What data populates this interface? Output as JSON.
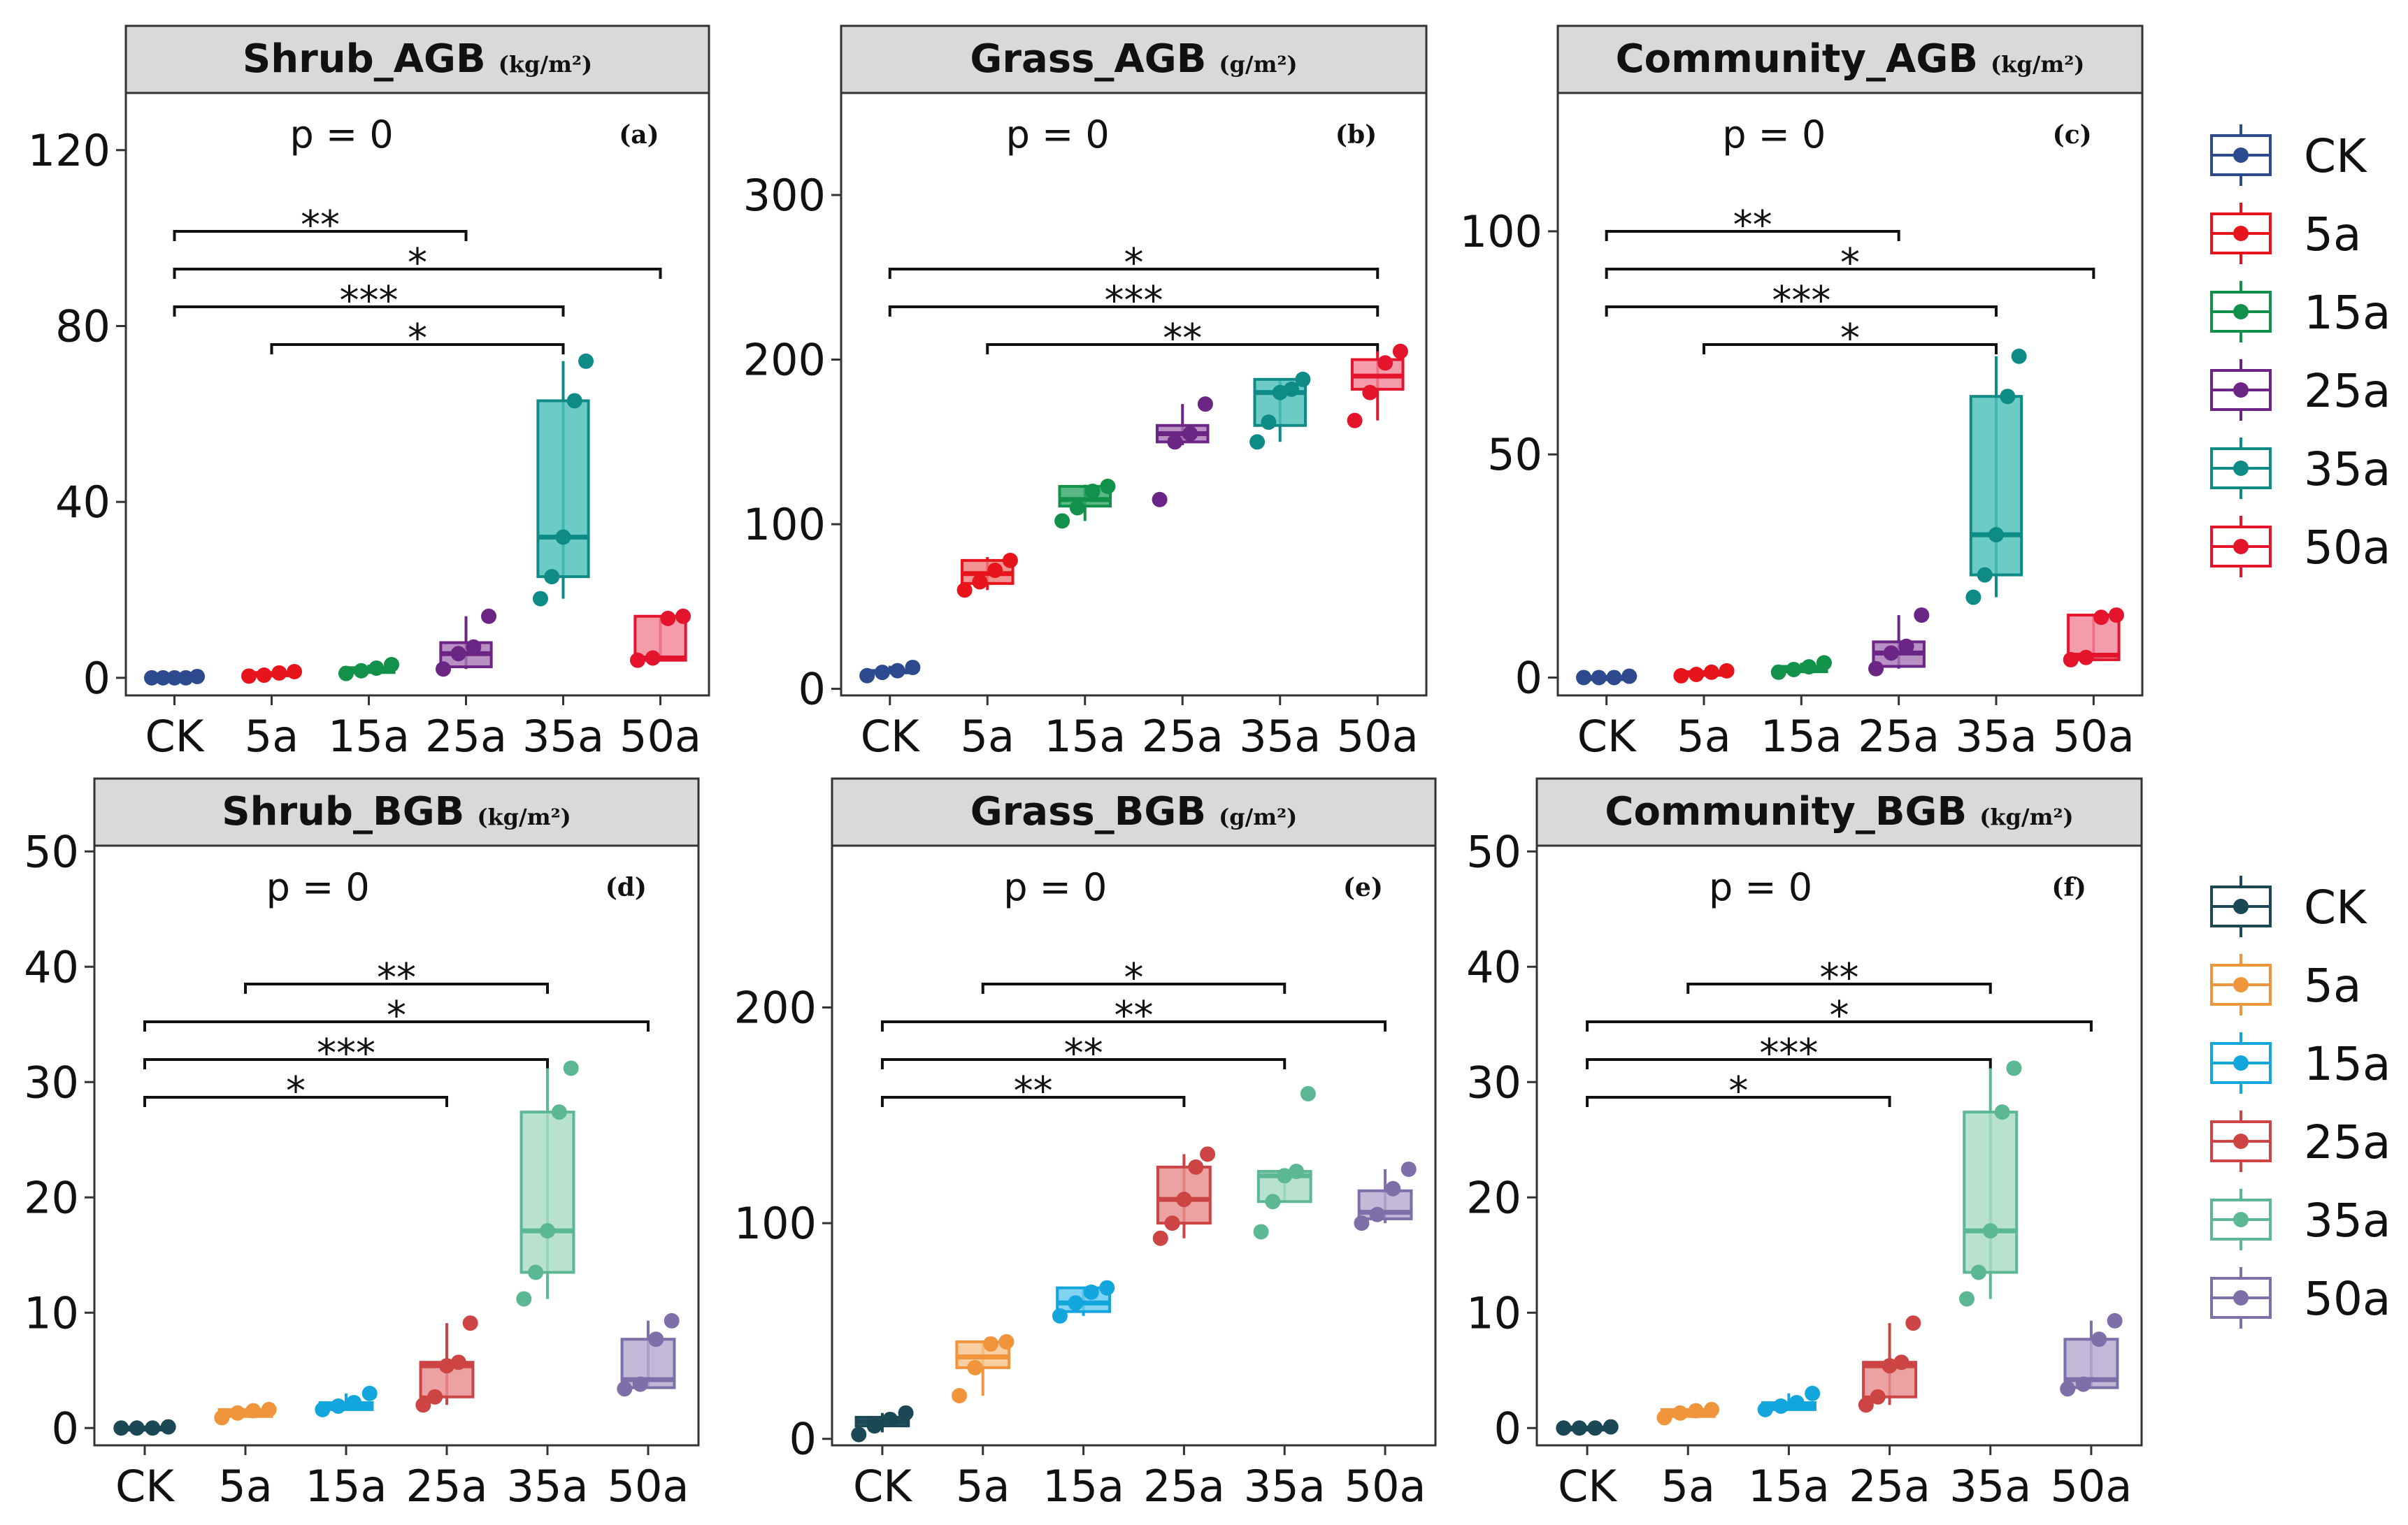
{
  "categories": [
    "CK",
    "5a",
    "15a",
    "25a",
    "35a",
    "50a"
  ],
  "legend_top": {
    "items": [
      "CK",
      "5a",
      "15a",
      "25a",
      "35a",
      "50a"
    ],
    "colors": [
      "#2e4a8e",
      "#e8141c",
      "#12914a",
      "#6a2585",
      "#0e8a87",
      "#e3142c"
    ],
    "fills": [
      "#2e4a8e",
      "#f07c7c",
      "#35a86a",
      "#a978b6",
      "#4dbfba",
      "#f3869a"
    ]
  },
  "legend_bottom": {
    "items": [
      "CK",
      "5a",
      "15a",
      "25a",
      "35a",
      "50a"
    ],
    "colors": [
      "#1c4754",
      "#f0953c",
      "#12a6dc",
      "#cc4444",
      "#5cb894",
      "#7e6fa8"
    ],
    "fills": [
      "#1c4754",
      "#f8c48e",
      "#67c9ef",
      "#e88e8e",
      "#a8dcc4",
      "#b4aad0"
    ]
  },
  "chart_data": [
    {
      "id": "a",
      "type": "box",
      "title": "Shrub_AGB",
      "unit": "(kg/m²)",
      "letter": "(a)",
      "p_text": "p = 0",
      "legend": "top",
      "ylim": [
        -4,
        133
      ],
      "yticks": [
        0,
        40,
        80,
        120
      ],
      "boxes": [
        {
          "q1": 0,
          "med": 0,
          "q3": 0,
          "lo": 0,
          "hi": 0,
          "pts": [
            0,
            0,
            0,
            0,
            0.3
          ]
        },
        {
          "q1": 0.5,
          "med": 0.7,
          "q3": 1.2,
          "lo": 0.4,
          "hi": 1.5,
          "pts": [
            0.4,
            0.6,
            1.1,
            1.4
          ]
        },
        {
          "q1": 1.2,
          "med": 1.8,
          "q3": 2.3,
          "lo": 1.0,
          "hi": 3.0,
          "pts": [
            1.0,
            1.6,
            2.2,
            3.0
          ]
        },
        {
          "q1": 2.5,
          "med": 5.5,
          "q3": 8.0,
          "lo": 2.0,
          "hi": 14.0,
          "pts": [
            2.0,
            5.5,
            7.0,
            14.0
          ]
        },
        {
          "q1": 23,
          "med": 32,
          "q3": 63,
          "lo": 18,
          "hi": 72,
          "pts": [
            18,
            23,
            32,
            63,
            72
          ]
        },
        {
          "q1": 4,
          "med": 4.5,
          "q3": 14,
          "lo": 4,
          "hi": 14,
          "pts": [
            4.0,
            4.5,
            13.5,
            14.0
          ]
        }
      ],
      "brackets": [
        {
          "from": 1,
          "to": 4,
          "level": 0,
          "label": "*"
        },
        {
          "from": 0,
          "to": 4,
          "level": 1,
          "label": "***"
        },
        {
          "from": 0,
          "to": 5,
          "level": 2,
          "label": "*"
        },
        {
          "from": 0,
          "to": 3,
          "level": 3,
          "label": "**"
        }
      ]
    },
    {
      "id": "b",
      "type": "box",
      "title": "Grass_AGB",
      "unit": "(g/m²)",
      "letter": "(b)",
      "p_text": "p = 0",
      "legend": "top",
      "ylim": [
        -4,
        362
      ],
      "yticks": [
        0,
        100,
        200,
        300
      ],
      "boxes": [
        {
          "q1": 10,
          "med": 10.5,
          "q3": 11,
          "lo": 9,
          "hi": 14,
          "pts": [
            8,
            10,
            11,
            13
          ]
        },
        {
          "q1": 64,
          "med": 70,
          "q3": 78,
          "lo": 60,
          "hi": 80,
          "pts": [
            60,
            65,
            72,
            78
          ]
        },
        {
          "q1": 111,
          "med": 115,
          "q3": 123,
          "lo": 102,
          "hi": 124,
          "pts": [
            102,
            110,
            120,
            123
          ]
        },
        {
          "q1": 150,
          "med": 155,
          "q3": 160,
          "lo": 148,
          "hi": 173,
          "pts": [
            115,
            150,
            155,
            173
          ]
        },
        {
          "q1": 160,
          "med": 180,
          "q3": 188,
          "lo": 150,
          "hi": 188,
          "pts": [
            150,
            162,
            180,
            182,
            188
          ]
        },
        {
          "q1": 182,
          "med": 190,
          "q3": 200,
          "lo": 163,
          "hi": 205,
          "pts": [
            163,
            180,
            198,
            205
          ]
        }
      ],
      "brackets": [
        {
          "from": 1,
          "to": 5,
          "level": 0,
          "label": "**"
        },
        {
          "from": 0,
          "to": 5,
          "level": 1,
          "label": "***"
        },
        {
          "from": 0,
          "to": 5,
          "level": 2,
          "label": "*"
        }
      ]
    },
    {
      "id": "c",
      "type": "box",
      "title": "Community_AGB",
      "unit": "(kg/m²)",
      "letter": "(c)",
      "p_text": "p = 0",
      "legend": "top",
      "ylim": [
        -4,
        131
      ],
      "yticks": [
        0,
        50,
        100
      ],
      "boxes": [
        {
          "q1": 0,
          "med": 0,
          "q3": 0,
          "lo": 0,
          "hi": 0,
          "pts": [
            0,
            0,
            0,
            0.3
          ]
        },
        {
          "q1": 0.5,
          "med": 0.8,
          "q3": 1.3,
          "lo": 0.4,
          "hi": 1.6,
          "pts": [
            0.4,
            0.7,
            1.2,
            1.5
          ]
        },
        {
          "q1": 1.3,
          "med": 2.0,
          "q3": 2.5,
          "lo": 1.2,
          "hi": 3.3,
          "pts": [
            1.2,
            1.8,
            2.4,
            3.3
          ]
        },
        {
          "q1": 2.5,
          "med": 5.5,
          "q3": 8.0,
          "lo": 2.0,
          "hi": 14.0,
          "pts": [
            2.0,
            5.5,
            7.0,
            14.0
          ]
        },
        {
          "q1": 23,
          "med": 32,
          "q3": 63,
          "lo": 18,
          "hi": 72,
          "pts": [
            18,
            23,
            32,
            63,
            72
          ]
        },
        {
          "q1": 4,
          "med": 5,
          "q3": 14,
          "lo": 4,
          "hi": 14,
          "pts": [
            4.0,
            4.5,
            13.5,
            14.0
          ]
        }
      ],
      "brackets": [
        {
          "from": 1,
          "to": 4,
          "level": 0,
          "label": "*"
        },
        {
          "from": 0,
          "to": 4,
          "level": 1,
          "label": "***"
        },
        {
          "from": 0,
          "to": 5,
          "level": 2,
          "label": "*"
        },
        {
          "from": 0,
          "to": 3,
          "level": 3,
          "label": "**"
        }
      ]
    },
    {
      "id": "d",
      "type": "box",
      "title": "Shrub_BGB",
      "unit": "(kg/m²)",
      "letter": "(d)",
      "p_text": "p = 0",
      "legend": "bottom",
      "ylim": [
        -1.5,
        50.5
      ],
      "yticks": [
        0,
        10,
        20,
        30,
        40,
        50
      ],
      "boxes": [
        {
          "q1": 0,
          "med": 0,
          "q3": 0,
          "lo": 0,
          "hi": 0,
          "pts": [
            0,
            0,
            0,
            0.1
          ]
        },
        {
          "q1": 1.0,
          "med": 1.3,
          "q3": 1.6,
          "lo": 1.0,
          "hi": 1.6,
          "pts": [
            0.9,
            1.3,
            1.5,
            1.6
          ]
        },
        {
          "q1": 1.6,
          "med": 1.9,
          "q3": 2.2,
          "lo": 1.6,
          "hi": 3.0,
          "pts": [
            1.6,
            1.9,
            2.2,
            3.0
          ]
        },
        {
          "q1": 2.7,
          "med": 5.4,
          "q3": 5.7,
          "lo": 2.0,
          "hi": 9.1,
          "pts": [
            2.0,
            2.7,
            5.4,
            5.7,
            9.1
          ]
        },
        {
          "q1": 13.5,
          "med": 17.1,
          "q3": 27.4,
          "lo": 11.2,
          "hi": 31.2,
          "pts": [
            11.2,
            13.5,
            17.1,
            27.4,
            31.2
          ]
        },
        {
          "q1": 3.5,
          "med": 4.2,
          "q3": 7.7,
          "lo": 3.5,
          "hi": 9.3,
          "pts": [
            3.4,
            3.8,
            7.7,
            9.3
          ]
        }
      ],
      "brackets": [
        {
          "from": 0,
          "to": 3,
          "level": 0,
          "label": "*"
        },
        {
          "from": 0,
          "to": 4,
          "level": 1,
          "label": "***"
        },
        {
          "from": 0,
          "to": 5,
          "level": 2,
          "label": "*"
        },
        {
          "from": 1,
          "to": 4,
          "level": 3,
          "label": "**"
        }
      ]
    },
    {
      "id": "e",
      "type": "box",
      "title": "Grass_BGB",
      "unit": "(g/m²)",
      "letter": "(e)",
      "p_text": "p = 0",
      "legend": "bottom",
      "ylim": [
        -3,
        275
      ],
      "yticks": [
        0,
        100,
        200
      ],
      "boxes": [
        {
          "q1": 6,
          "med": 8,
          "q3": 10,
          "lo": 3,
          "hi": 12,
          "pts": [
            2,
            6,
            9,
            12
          ]
        },
        {
          "q1": 33,
          "med": 38,
          "q3": 45,
          "lo": 20,
          "hi": 45,
          "pts": [
            20,
            33,
            44,
            45
          ]
        },
        {
          "q1": 59,
          "med": 63,
          "q3": 70,
          "lo": 57,
          "hi": 70,
          "pts": [
            57,
            63,
            68,
            70
          ]
        },
        {
          "q1": 100,
          "med": 111,
          "q3": 126,
          "lo": 93,
          "hi": 132,
          "pts": [
            93,
            100,
            111,
            126,
            132
          ]
        },
        {
          "q1": 110,
          "med": 122,
          "q3": 124,
          "lo": 110,
          "hi": 124,
          "pts": [
            96,
            110,
            122,
            124,
            160
          ]
        },
        {
          "q1": 102,
          "med": 105,
          "q3": 115,
          "lo": 100,
          "hi": 125,
          "pts": [
            100,
            104,
            116,
            125
          ]
        }
      ],
      "brackets": [
        {
          "from": 0,
          "to": 3,
          "level": 0,
          "label": "**"
        },
        {
          "from": 0,
          "to": 4,
          "level": 1,
          "label": "**"
        },
        {
          "from": 0,
          "to": 5,
          "level": 2,
          "label": "**"
        },
        {
          "from": 1,
          "to": 4,
          "level": 3,
          "label": "*"
        }
      ]
    },
    {
      "id": "f",
      "type": "box",
      "title": "Community_BGB",
      "unit": "(kg/m²)",
      "letter": "(f)",
      "p_text": "p = 0",
      "legend": "bottom",
      "ylim": [
        -1.5,
        50.5
      ],
      "yticks": [
        0,
        10,
        20,
        30,
        40,
        50
      ],
      "boxes": [
        {
          "q1": 0,
          "med": 0,
          "q3": 0,
          "lo": 0,
          "hi": 0,
          "pts": [
            0,
            0,
            0,
            0.1
          ]
        },
        {
          "q1": 1.0,
          "med": 1.3,
          "q3": 1.6,
          "lo": 1.0,
          "hi": 1.6,
          "pts": [
            0.9,
            1.3,
            1.5,
            1.6
          ]
        },
        {
          "q1": 1.6,
          "med": 1.9,
          "q3": 2.2,
          "lo": 1.6,
          "hi": 3.0,
          "pts": [
            1.6,
            1.9,
            2.2,
            3.0
          ]
        },
        {
          "q1": 2.7,
          "med": 5.4,
          "q3": 5.7,
          "lo": 2.0,
          "hi": 9.1,
          "pts": [
            2.0,
            2.7,
            5.4,
            5.7,
            9.1
          ]
        },
        {
          "q1": 13.5,
          "med": 17.1,
          "q3": 27.4,
          "lo": 11.2,
          "hi": 31.2,
          "pts": [
            11.2,
            13.5,
            17.1,
            27.4,
            31.2
          ]
        },
        {
          "q1": 3.5,
          "med": 4.2,
          "q3": 7.7,
          "lo": 3.5,
          "hi": 9.3,
          "pts": [
            3.4,
            3.8,
            7.7,
            9.3
          ]
        }
      ],
      "brackets": [
        {
          "from": 0,
          "to": 3,
          "level": 0,
          "label": "*"
        },
        {
          "from": 0,
          "to": 4,
          "level": 1,
          "label": "***"
        },
        {
          "from": 0,
          "to": 5,
          "level": 2,
          "label": "*"
        },
        {
          "from": 1,
          "to": 4,
          "level": 3,
          "label": "**"
        }
      ]
    }
  ]
}
